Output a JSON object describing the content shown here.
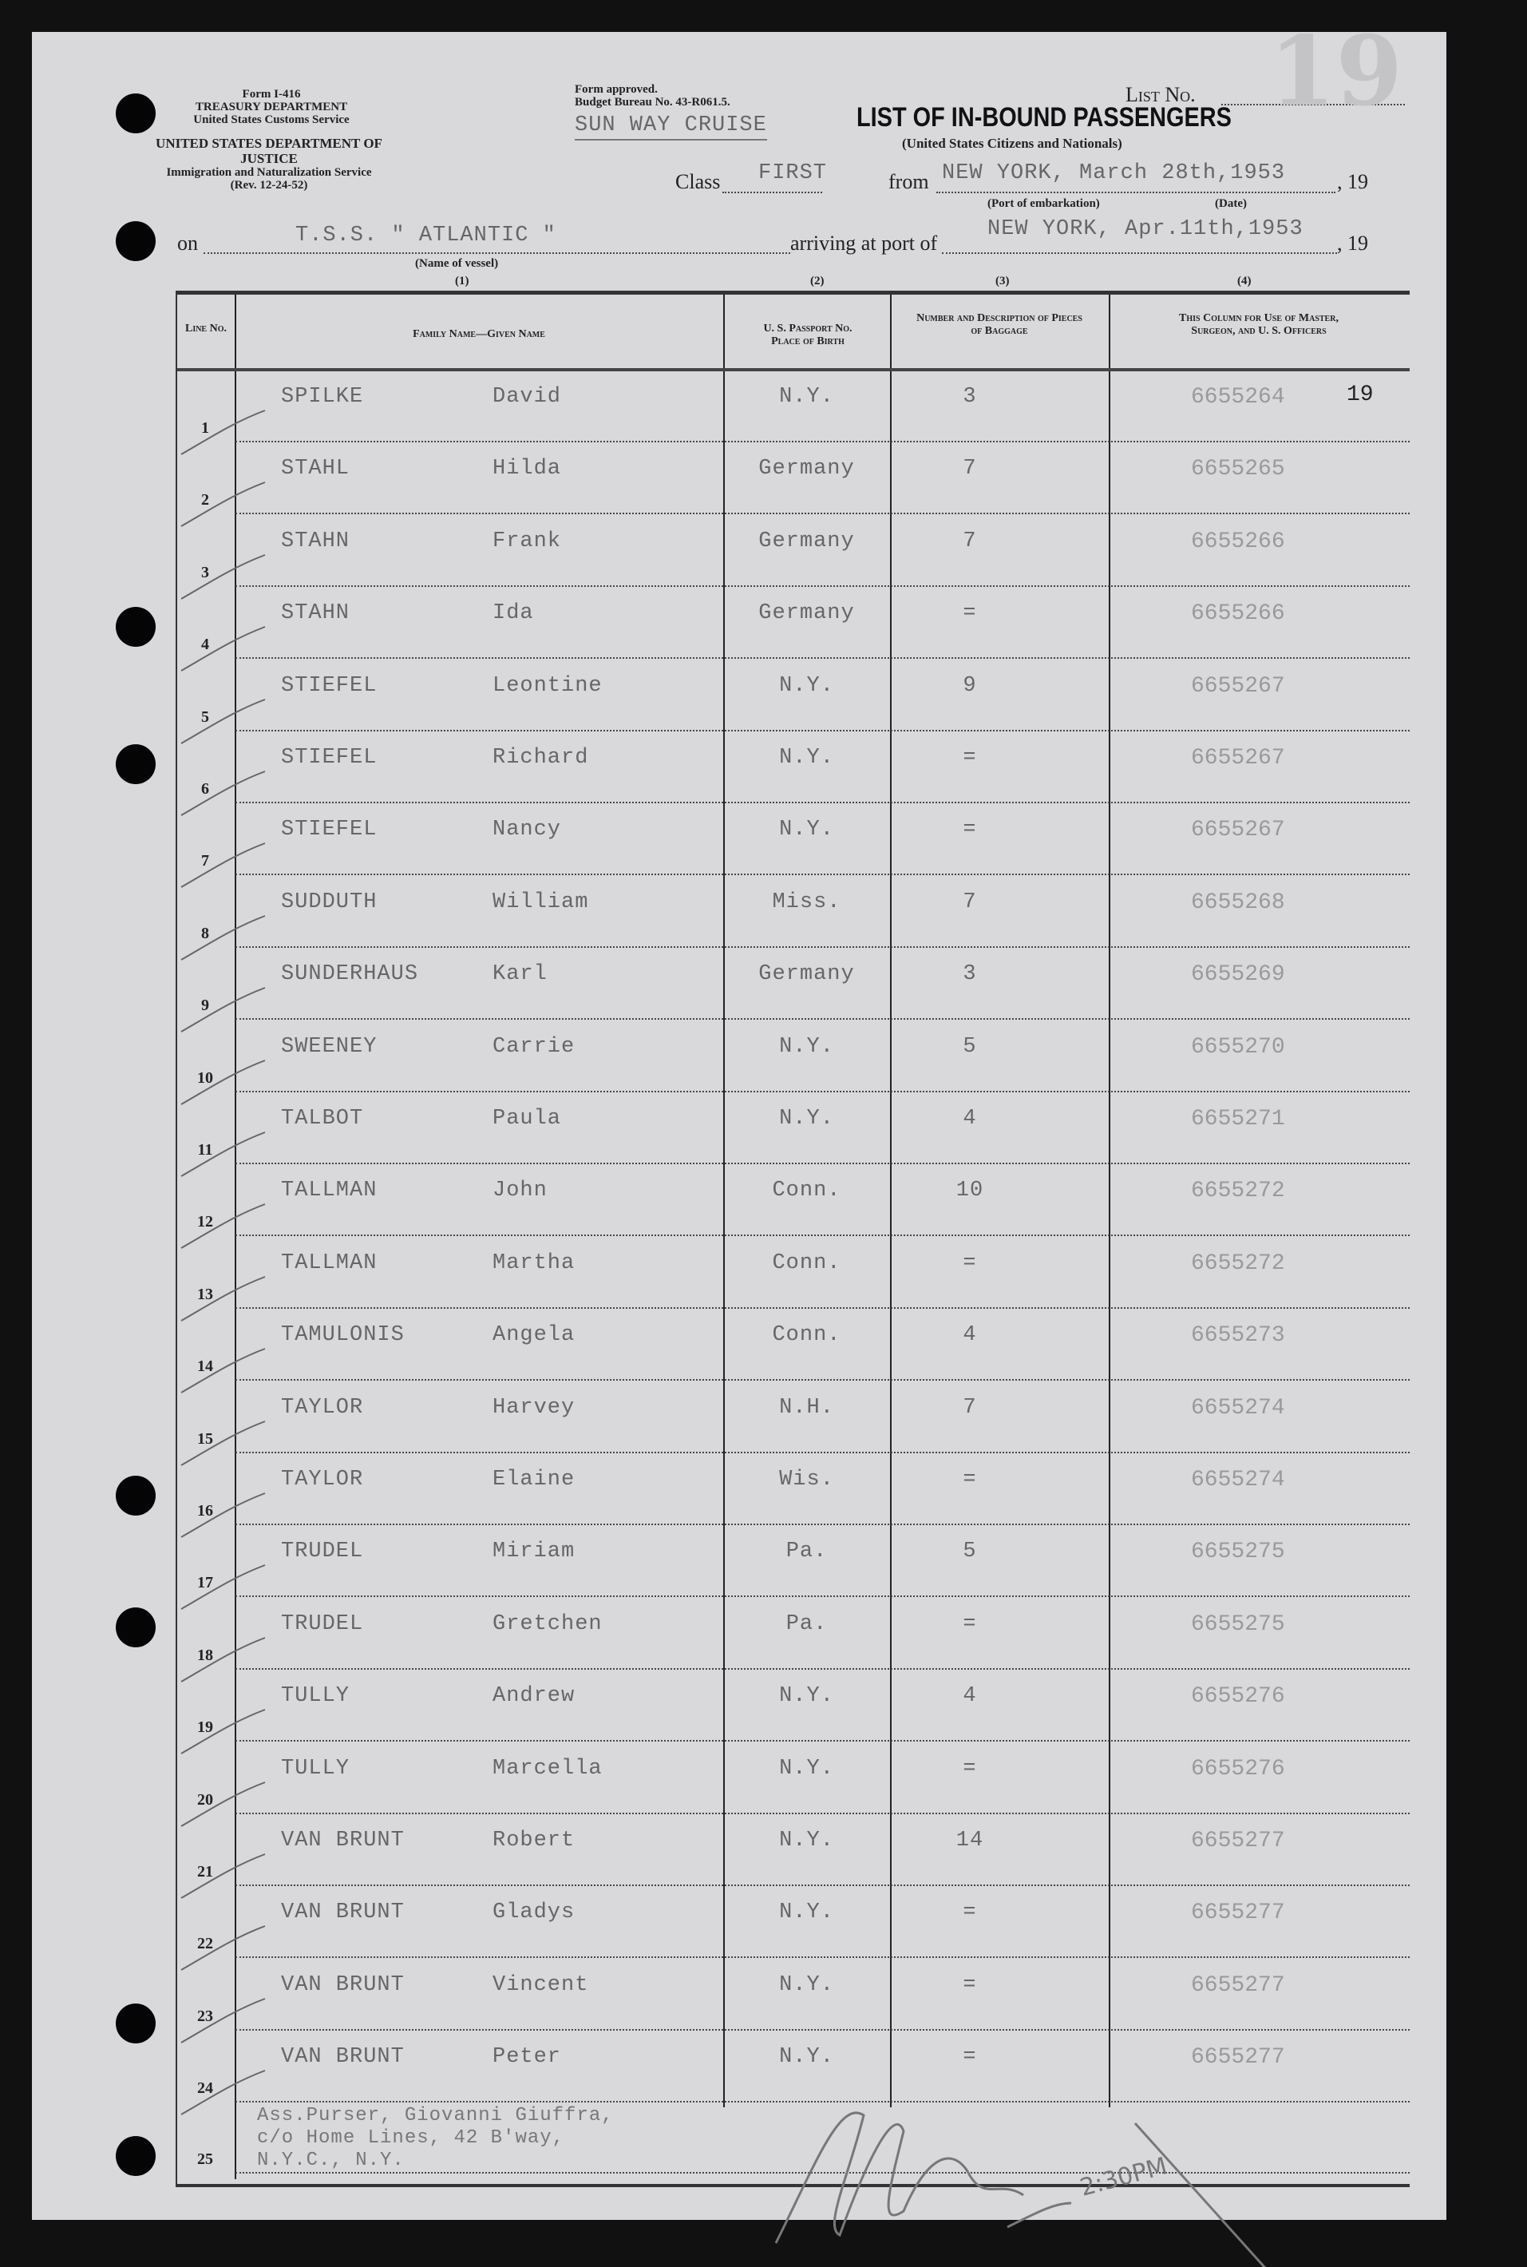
{
  "header": {
    "form_left": [
      "Form I-416",
      "TREASURY DEPARTMENT",
      "United States Customs Service"
    ],
    "form_left2": [
      "UNITED STATES DEPARTMENT OF JUSTICE",
      "Immigration and Naturalization Service",
      "(Rev. 12-24-52)"
    ],
    "form_approved": [
      "Form approved.",
      "Budget Bureau No. 43-R061.5."
    ],
    "cruise_stamp": "SUN WAY CRUISE",
    "list_no_label": "List No.",
    "list_no_value": "19",
    "title": "LIST OF IN-BOUND PASSENGERS",
    "subtitle": "(United States Citizens and Nationals)",
    "class_label": "Class",
    "class_value": "FIRST",
    "from_label": "from",
    "from_value": "NEW YORK, March 28th,1953",
    "year_label_1": ", 19",
    "port_embark_caption": "(Port of embarkation)",
    "date_caption": "(Date)",
    "on_label": "on",
    "vessel_value": "T.S.S. \" ATLANTIC \"",
    "vessel_caption": "(Name of vessel)",
    "arriving_label": "arriving at port of",
    "arriving_value": "NEW YORK, Apr.11th,1953",
    "year_label_2": ", 19",
    "col_numbers": [
      "(1)",
      "(2)",
      "(3)",
      "(4)"
    ]
  },
  "table": {
    "columns": [
      "Line No.",
      "Family Name—Given Name",
      "U. S. Passport No. Place of Birth",
      "Number and Description of Pieces of Baggage",
      "This Column for Use of Master, Surgeon, and U. S. Officers"
    ],
    "rows": [
      {
        "line": "1",
        "family": "SPILKE",
        "given": "David",
        "place": "N.Y.",
        "baggage": "3",
        "officer": "6655264"
      },
      {
        "line": "2",
        "family": "STAHL",
        "given": "Hilda",
        "place": "Germany",
        "baggage": "7",
        "officer": "6655265"
      },
      {
        "line": "3",
        "family": "STAHN",
        "given": "Frank",
        "place": "Germany",
        "baggage": "7",
        "officer": "6655266"
      },
      {
        "line": "4",
        "family": "STAHN",
        "given": "Ida",
        "place": "Germany",
        "baggage": "=",
        "officer": "6655266"
      },
      {
        "line": "5",
        "family": "STIEFEL",
        "given": "Leontine",
        "place": "N.Y.",
        "baggage": "9",
        "officer": "6655267"
      },
      {
        "line": "6",
        "family": "STIEFEL",
        "given": "Richard",
        "place": "N.Y.",
        "baggage": "=",
        "officer": "6655267"
      },
      {
        "line": "7",
        "family": "STIEFEL",
        "given": "Nancy",
        "place": "N.Y.",
        "baggage": "=",
        "officer": "6655267"
      },
      {
        "line": "8",
        "family": "SUDDUTH",
        "given": "William",
        "place": "Miss.",
        "baggage": "7",
        "officer": "6655268"
      },
      {
        "line": "9",
        "family": "SUNDERHAUS",
        "given": "Karl",
        "place": "Germany",
        "baggage": "3",
        "officer": "6655269"
      },
      {
        "line": "10",
        "family": "SWEENEY",
        "given": "Carrie",
        "place": "N.Y.",
        "baggage": "5",
        "officer": "6655270"
      },
      {
        "line": "11",
        "family": "TALBOT",
        "given": "Paula",
        "place": "N.Y.",
        "baggage": "4",
        "officer": "6655271"
      },
      {
        "line": "12",
        "family": "TALLMAN",
        "given": "John",
        "place": "Conn.",
        "baggage": "10",
        "officer": "6655272"
      },
      {
        "line": "13",
        "family": "TALLMAN",
        "given": "Martha",
        "place": "Conn.",
        "baggage": "=",
        "officer": "6655272"
      },
      {
        "line": "14",
        "family": "TAMULONIS",
        "given": "Angela",
        "place": "Conn.",
        "baggage": "4",
        "officer": "6655273"
      },
      {
        "line": "15",
        "family": "TAYLOR",
        "given": "Harvey",
        "place": "N.H.",
        "baggage": "7",
        "officer": "6655274"
      },
      {
        "line": "16",
        "family": "TAYLOR",
        "given": "Elaine",
        "place": "Wis.",
        "baggage": "=",
        "officer": "6655274"
      },
      {
        "line": "17",
        "family": "TRUDEL",
        "given": "Miriam",
        "place": "Pa.",
        "baggage": "5",
        "officer": "6655275"
      },
      {
        "line": "18",
        "family": "TRUDEL",
        "given": "Gretchen",
        "place": "Pa.",
        "baggage": "=",
        "officer": "6655275"
      },
      {
        "line": "19",
        "family": "TULLY",
        "given": "Andrew",
        "place": "N.Y.",
        "baggage": "4",
        "officer": "6655276"
      },
      {
        "line": "20",
        "family": "TULLY",
        "given": "Marcella",
        "place": "N.Y.",
        "baggage": "=",
        "officer": "6655276"
      },
      {
        "line": "21",
        "family": "VAN BRUNT",
        "given": "Robert",
        "place": "N.Y.",
        "baggage": "14",
        "officer": "6655277"
      },
      {
        "line": "22",
        "family": "VAN BRUNT",
        "given": "Gladys",
        "place": "N.Y.",
        "baggage": "=",
        "officer": "6655277"
      },
      {
        "line": "23",
        "family": "VAN BRUNT",
        "given": "Vincent",
        "place": "N.Y.",
        "baggage": "=",
        "officer": "6655277"
      },
      {
        "line": "24",
        "family": "VAN BRUNT",
        "given": "Peter",
        "place": "N.Y.",
        "baggage": "=",
        "officer": "6655277"
      }
    ],
    "first_row_annotation": "19",
    "line_25": "25",
    "purser_lines": [
      "Ass.Purser, Giovanni Giuffra,",
      "c/o Home Lines, 42 B'way,",
      "N.Y.C., N.Y."
    ],
    "signature_note": "2:30PM"
  }
}
